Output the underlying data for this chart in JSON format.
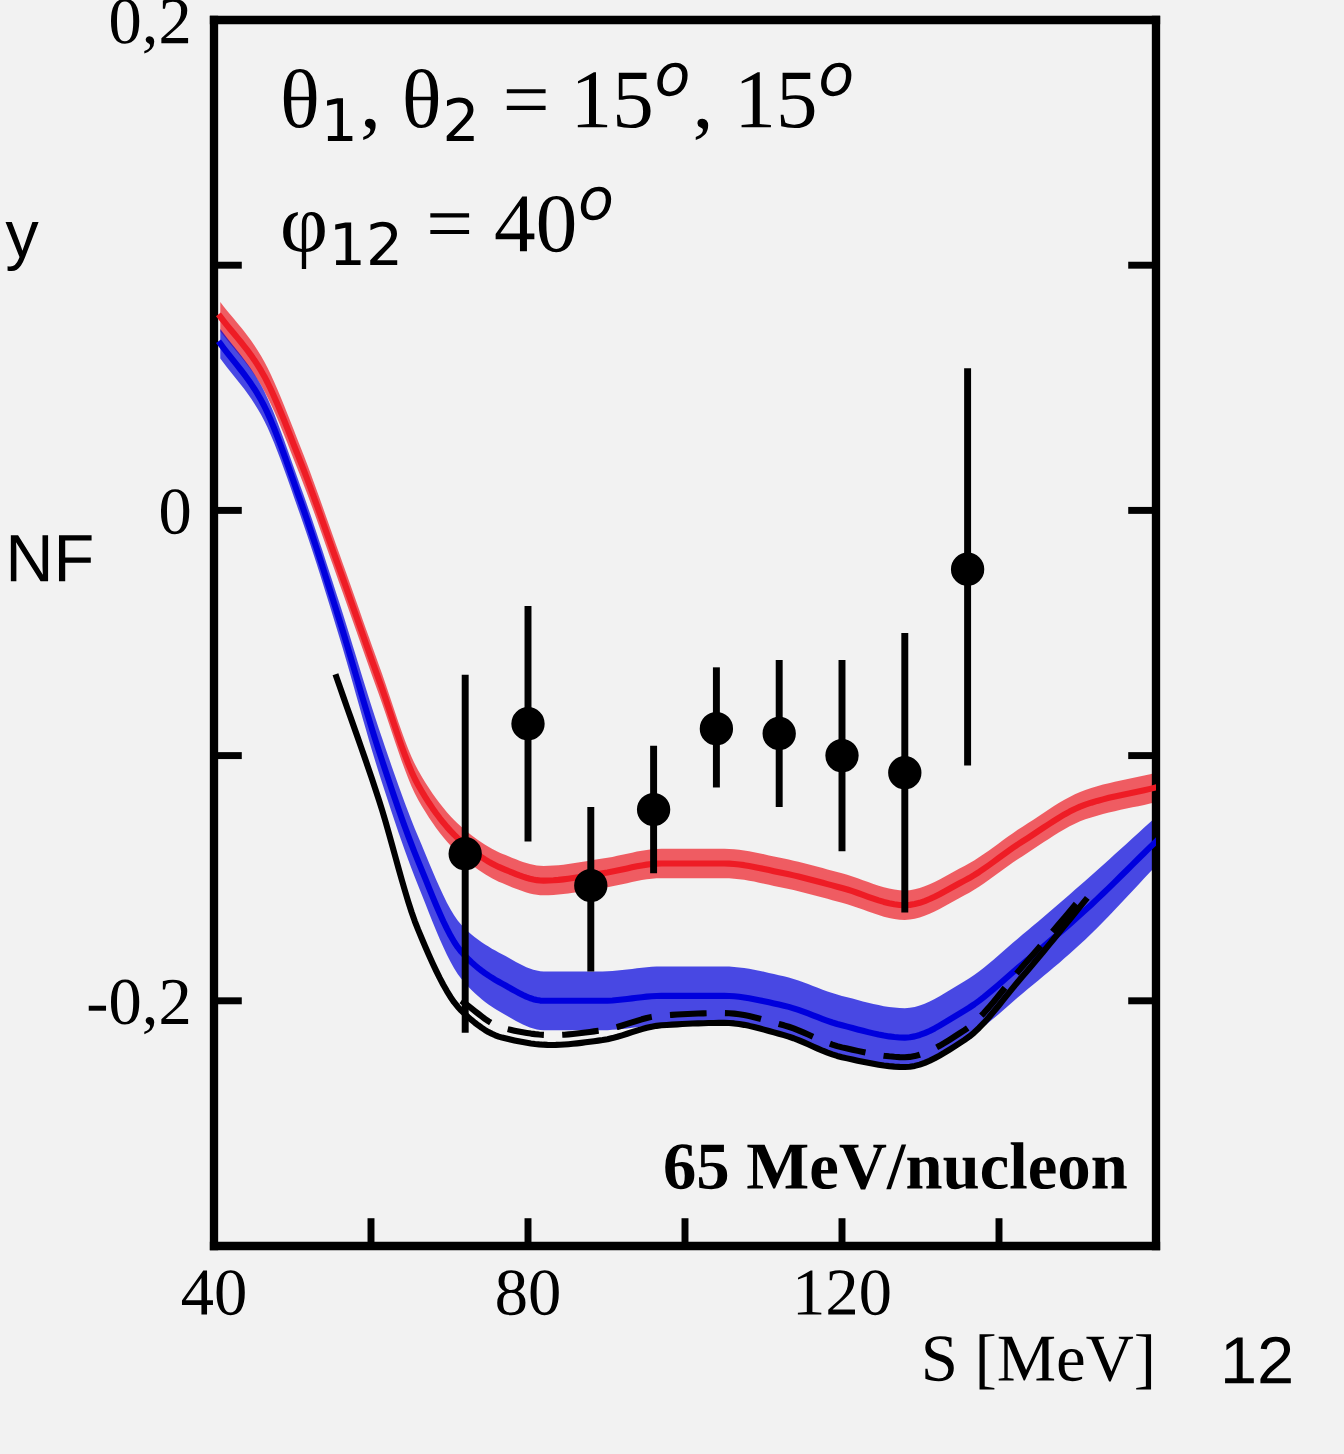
{
  "chart_data": {
    "type": "line",
    "xlabel": "S [MeV]",
    "xlim": [
      40,
      160
    ],
    "ylim": [
      -0.3,
      0.2
    ],
    "xticks": [
      40,
      {
        "value": 60,
        "label": null
      },
      80,
      {
        "value": 100,
        "label": null
      },
      120,
      {
        "value": 140,
        "label": null
      }
    ],
    "yticks": [
      {
        "value": 0.2,
        "label": "0,2"
      },
      {
        "value": 0.1,
        "label": null
      },
      0,
      {
        "value": -0.1,
        "label": null
      },
      {
        "value": -0.2,
        "label": "-0,2"
      }
    ],
    "grid": false,
    "annotations": [
      "θ$_{1}$, θ$_{2}$ = 15$^{o}$, 15$^{o}$",
      "φ$_{12}$ = 40$^{o}$",
      "65 MeV/nucleon",
      "y",
      "NF",
      "12"
    ],
    "series": [
      {
        "color": "#ee1c25",
        "x": [
          40.8,
          46,
          51,
          56,
          61,
          66,
          71.5,
          76.7,
          82,
          89.5,
          97,
          105,
          112.6,
          120,
          128,
          135.6,
          143,
          151,
          160
        ],
        "values": [
          0.079,
          0.057,
          0.02,
          -0.024,
          -0.069,
          -0.112,
          -0.135,
          -0.146,
          -0.151,
          -0.148,
          -0.144,
          -0.144,
          -0.148,
          -0.154,
          -0.161,
          -0.151,
          -0.135,
          -0.12,
          -0.113
        ],
        "lower": [
          0.073,
          0.051,
          0.014,
          -0.03,
          -0.075,
          -0.118,
          -0.141,
          -0.152,
          -0.157,
          -0.154,
          -0.15,
          -0.15,
          -0.154,
          -0.16,
          -0.167,
          -0.157,
          -0.141,
          -0.126,
          -0.119
        ],
        "upper": [
          0.085,
          0.063,
          0.026,
          -0.018,
          -0.063,
          -0.106,
          -0.129,
          -0.14,
          -0.145,
          -0.142,
          -0.138,
          -0.138,
          -0.142,
          -0.148,
          -0.155,
          -0.145,
          -0.129,
          -0.114,
          -0.107
        ]
      },
      {
        "color": "#0000dd",
        "x": [
          40.8,
          46,
          51,
          56,
          61,
          66,
          71.5,
          76.7,
          82,
          89.5,
          97,
          105,
          112.6,
          120,
          128,
          135.6,
          143,
          151,
          160
        ],
        "values": [
          0.068,
          0.045,
          0.004,
          -0.045,
          -0.098,
          -0.143,
          -0.18,
          -0.193,
          -0.2,
          -0.2,
          -0.198,
          -0.198,
          -0.202,
          -0.21,
          -0.215,
          -0.204,
          -0.185,
          -0.163,
          -0.135
        ],
        "lower": [
          0.062,
          0.039,
          -0.002,
          -0.052,
          -0.107,
          -0.153,
          -0.191,
          -0.205,
          -0.212,
          -0.212,
          -0.21,
          -0.21,
          -0.214,
          -0.222,
          -0.227,
          -0.216,
          -0.197,
          -0.175,
          -0.145
        ],
        "upper": [
          0.074,
          0.051,
          0.01,
          -0.038,
          -0.089,
          -0.133,
          -0.169,
          -0.181,
          -0.188,
          -0.188,
          -0.186,
          -0.186,
          -0.19,
          -0.198,
          -0.203,
          -0.192,
          -0.173,
          -0.151,
          -0.125
        ]
      },
      {
        "type": "line",
        "color": "#000000",
        "line_style": "solid",
        "x": [
          55.6,
          61,
          66,
          71.5,
          76.7,
          83,
          89.5,
          97,
          105,
          112.6,
          120,
          128,
          135.6,
          143,
          151
        ],
        "values": [
          -0.068,
          -0.118,
          -0.171,
          -0.204,
          -0.215,
          -0.218,
          -0.216,
          -0.21,
          -0.209,
          -0.214,
          -0.223,
          -0.227,
          -0.216,
          -0.19,
          -0.159
        ]
      },
      {
        "type": "line",
        "color": "#000000",
        "line_style": "dashed",
        "x": [
          71.5,
          76.7,
          83,
          89.5,
          97,
          105,
          112.6,
          120,
          128,
          135.6,
          143,
          151
        ],
        "values": [
          -0.2,
          -0.211,
          -0.214,
          -0.212,
          -0.206,
          -0.205,
          -0.21,
          -0.219,
          -0.223,
          -0.212,
          -0.186,
          -0.156
        ]
      },
      {
        "type": "scatter",
        "color": "#000000",
        "marker": "circle",
        "x": [
          72,
          80,
          88,
          96,
          104,
          112,
          120,
          128,
          136
        ],
        "values": [
          -0.14,
          -0.087,
          -0.153,
          -0.122,
          -0.089,
          -0.091,
          -0.1,
          -0.107,
          -0.024
        ],
        "errors": [
          [
            -0.213,
            -0.067
          ],
          [
            -0.135,
            -0.039
          ],
          [
            -0.188,
            -0.121
          ],
          [
            -0.148,
            -0.096
          ],
          [
            -0.113,
            -0.064
          ],
          [
            -0.121,
            -0.061
          ],
          [
            -0.139,
            -0.061
          ],
          [
            -0.164,
            -0.05
          ],
          [
            -0.104,
            0.058
          ]
        ]
      }
    ]
  }
}
